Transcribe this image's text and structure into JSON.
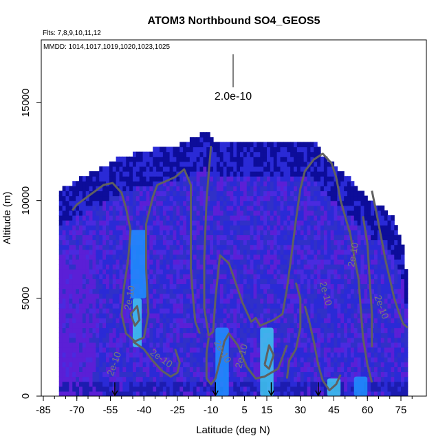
{
  "chart_data": {
    "type": "heatmap",
    "title": "ATOM3 Northbound SO4_GEOS5",
    "subtitle_flights": "Flts: 7,8,9,10,11,12",
    "subtitle_dates": "MMDD: 1014,1017,1019,1020,1023,1025",
    "xlabel": "Latitude (deg N)",
    "ylabel": "Altitude (m)",
    "xlim": [
      -85,
      80
    ],
    "ylim": [
      0,
      17500
    ],
    "x_ticks": [
      "-85",
      "-70",
      "-55",
      "-40",
      "-25",
      "-10",
      "5",
      "15",
      "30",
      "45",
      "60",
      "75"
    ],
    "x_tick_values": [
      -85,
      -70,
      -55,
      -40,
      -25,
      -10,
      5,
      15,
      30,
      45,
      60,
      75
    ],
    "y_ticks": [
      "0",
      "5000",
      "10000",
      "15000"
    ],
    "y_tick_values": [
      0,
      5000,
      10000,
      15000
    ],
    "color_key_label": "2.0e-10",
    "contour_level": "2e-10",
    "contour_labels": [
      "2e-10",
      "2e-10",
      "2e-10",
      "2e-10",
      "2e-10",
      "2e-10",
      "2e-10",
      "2e-10"
    ],
    "flight_markers_lat": [
      -53,
      -8,
      17,
      38
    ],
    "ceiling_profile": [
      [
        -78,
        10400
      ],
      [
        -72,
        10700
      ],
      [
        -66,
        11200
      ],
      [
        -58,
        11600
      ],
      [
        -52,
        12000
      ],
      [
        -44,
        12300
      ],
      [
        -36,
        12500
      ],
      [
        -26,
        12600
      ],
      [
        -12,
        13400
      ],
      [
        -8,
        12800
      ],
      [
        2,
        12900
      ],
      [
        20,
        12900
      ],
      [
        36,
        12900
      ],
      [
        40,
        12200
      ],
      [
        46,
        11600
      ],
      [
        52,
        11000
      ],
      [
        56,
        10500
      ],
      [
        62,
        9800
      ],
      [
        68,
        9500
      ],
      [
        72,
        8900
      ],
      [
        76,
        7500
      ],
      [
        78,
        5800
      ]
    ],
    "bright_regions": [
      {
        "lat": [
          -45,
          -41
        ],
        "alt": [
          2500,
          5000
        ],
        "level": "high"
      },
      {
        "lat": [
          -46,
          -39
        ],
        "alt": [
          5000,
          8500
        ],
        "level": "medium"
      },
      {
        "lat": [
          -8,
          -2
        ],
        "alt": [
          0,
          3500
        ],
        "level": "medium"
      },
      {
        "lat": [
          12,
          18
        ],
        "alt": [
          0,
          3500
        ],
        "level": "high"
      },
      {
        "lat": [
          42,
          48
        ],
        "alt": [
          0,
          900
        ],
        "level": "high"
      },
      {
        "lat": [
          54,
          60
        ],
        "alt": [
          0,
          1000
        ],
        "level": "medium"
      }
    ],
    "colors": {
      "dark": "#0d0d9a",
      "mid": "#2a2ad6",
      "bright_blue": "#1e90ff",
      "cyan": "#40c8f0",
      "purple": "#5b1fd6",
      "contour": "#606060"
    }
  }
}
